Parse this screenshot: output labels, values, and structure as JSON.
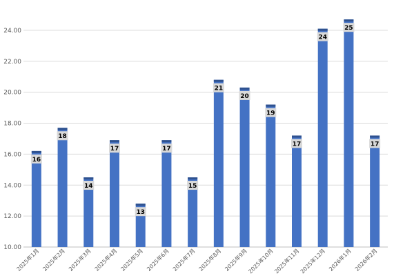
{
  "chart_data": {
    "type": "bar",
    "categories": [
      "2025年1月",
      "2025年2月",
      "2025年3月",
      "2025年4月",
      "2025年5月",
      "2025年6月",
      "2025年7月",
      "2025年8月",
      "2025年9月",
      "2025年10月",
      "2025年11月",
      "2025年12月",
      "2026年1月",
      "2026年2月"
    ],
    "values": [
      16.2,
      17.7,
      14.5,
      16.9,
      12.8,
      16.9,
      14.5,
      20.8,
      20.3,
      19.2,
      17.2,
      24.1,
      24.7,
      17.2
    ],
    "data_labels": [
      "16",
      "18",
      "14",
      "17",
      "13",
      "17",
      "15",
      "21",
      "20",
      "19",
      "17",
      "24",
      "25",
      "17"
    ],
    "yticks": [
      "10.00",
      "12.00",
      "14.00",
      "16.00",
      "18.00",
      "20.00",
      "22.00",
      "24.00"
    ],
    "ylim": [
      10,
      25.6
    ],
    "title": "",
    "xlabel": "",
    "ylabel": "",
    "grid": true,
    "bar_color": "#4472c4",
    "cap_color": "#2f528f",
    "label_bg_color": "#d9d9d9"
  }
}
